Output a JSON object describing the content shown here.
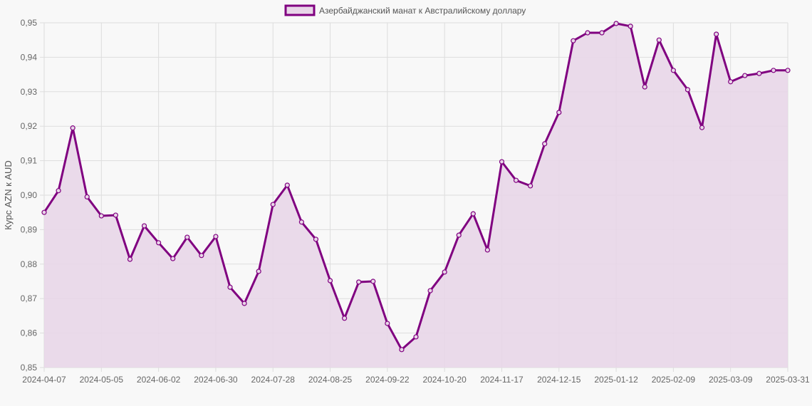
{
  "chart_data": {
    "type": "line",
    "title": "",
    "legend": {
      "position": "top",
      "entries": [
        "Азербайджанский манат к Австралийскому доллару"
      ]
    },
    "xlabel": "",
    "ylabel": "Курс AZN к AUD",
    "ylim": [
      0.85,
      0.95
    ],
    "y_ticks": [
      "0,85",
      "0,86",
      "0,87",
      "0,88",
      "0,89",
      "0,90",
      "0,91",
      "0,92",
      "0,93",
      "0,94",
      "0,95"
    ],
    "x_tick_labels": [
      "2024-04-07",
      "2024-05-05",
      "2024-06-02",
      "2024-06-30",
      "2024-07-28",
      "2024-08-25",
      "2024-09-22",
      "2024-10-20",
      "2024-11-17",
      "2024-12-15",
      "2025-01-12",
      "2025-02-09",
      "2025-03-09",
      "2025-03-31"
    ],
    "x_tick_every": 4,
    "grid": true,
    "fill": true,
    "colors": {
      "line": "#800080",
      "fill": "#e8d6e8",
      "grid": "#dddddd",
      "background": "#f8f8f8"
    },
    "x": [
      "2024-04-07",
      "2024-04-14",
      "2024-04-21",
      "2024-04-28",
      "2024-05-05",
      "2024-05-12",
      "2024-05-19",
      "2024-05-26",
      "2024-06-02",
      "2024-06-09",
      "2024-06-16",
      "2024-06-23",
      "2024-06-30",
      "2024-07-07",
      "2024-07-14",
      "2024-07-21",
      "2024-07-28",
      "2024-08-04",
      "2024-08-11",
      "2024-08-18",
      "2024-08-25",
      "2024-09-01",
      "2024-09-08",
      "2024-09-15",
      "2024-09-22",
      "2024-09-29",
      "2024-10-06",
      "2024-10-13",
      "2024-10-20",
      "2024-10-27",
      "2024-11-03",
      "2024-11-10",
      "2024-11-17",
      "2024-11-24",
      "2024-12-01",
      "2024-12-08",
      "2024-12-15",
      "2024-12-22",
      "2024-12-29",
      "2025-01-05",
      "2025-01-12",
      "2025-01-19",
      "2025-01-26",
      "2025-02-02",
      "2025-02-09",
      "2025-02-16",
      "2025-02-23",
      "2025-03-02",
      "2025-03-09",
      "2025-03-16",
      "2025-03-23",
      "2025-03-30",
      "2025-03-31"
    ],
    "series": [
      {
        "name": "Азербайджанский манат к Австралийскому доллару",
        "values": [
          0.895,
          0.9013,
          0.9195,
          0.8995,
          0.894,
          0.8942,
          0.8814,
          0.8911,
          0.8862,
          0.8816,
          0.8878,
          0.8825,
          0.888,
          0.8733,
          0.8686,
          0.8779,
          0.8973,
          0.9029,
          0.8922,
          0.8872,
          0.8752,
          0.8643,
          0.8748,
          0.875,
          0.8628,
          0.8552,
          0.8589,
          0.8723,
          0.8777,
          0.8884,
          0.8946,
          0.8841,
          0.9097,
          0.9043,
          0.9027,
          0.9149,
          0.924,
          0.9448,
          0.9471,
          0.9471,
          0.9498,
          0.949,
          0.9314,
          0.945,
          0.9362,
          0.9306,
          0.9196,
          0.9467,
          0.9329,
          0.9347,
          0.9353,
          0.9362,
          0.9362
        ]
      }
    ]
  }
}
